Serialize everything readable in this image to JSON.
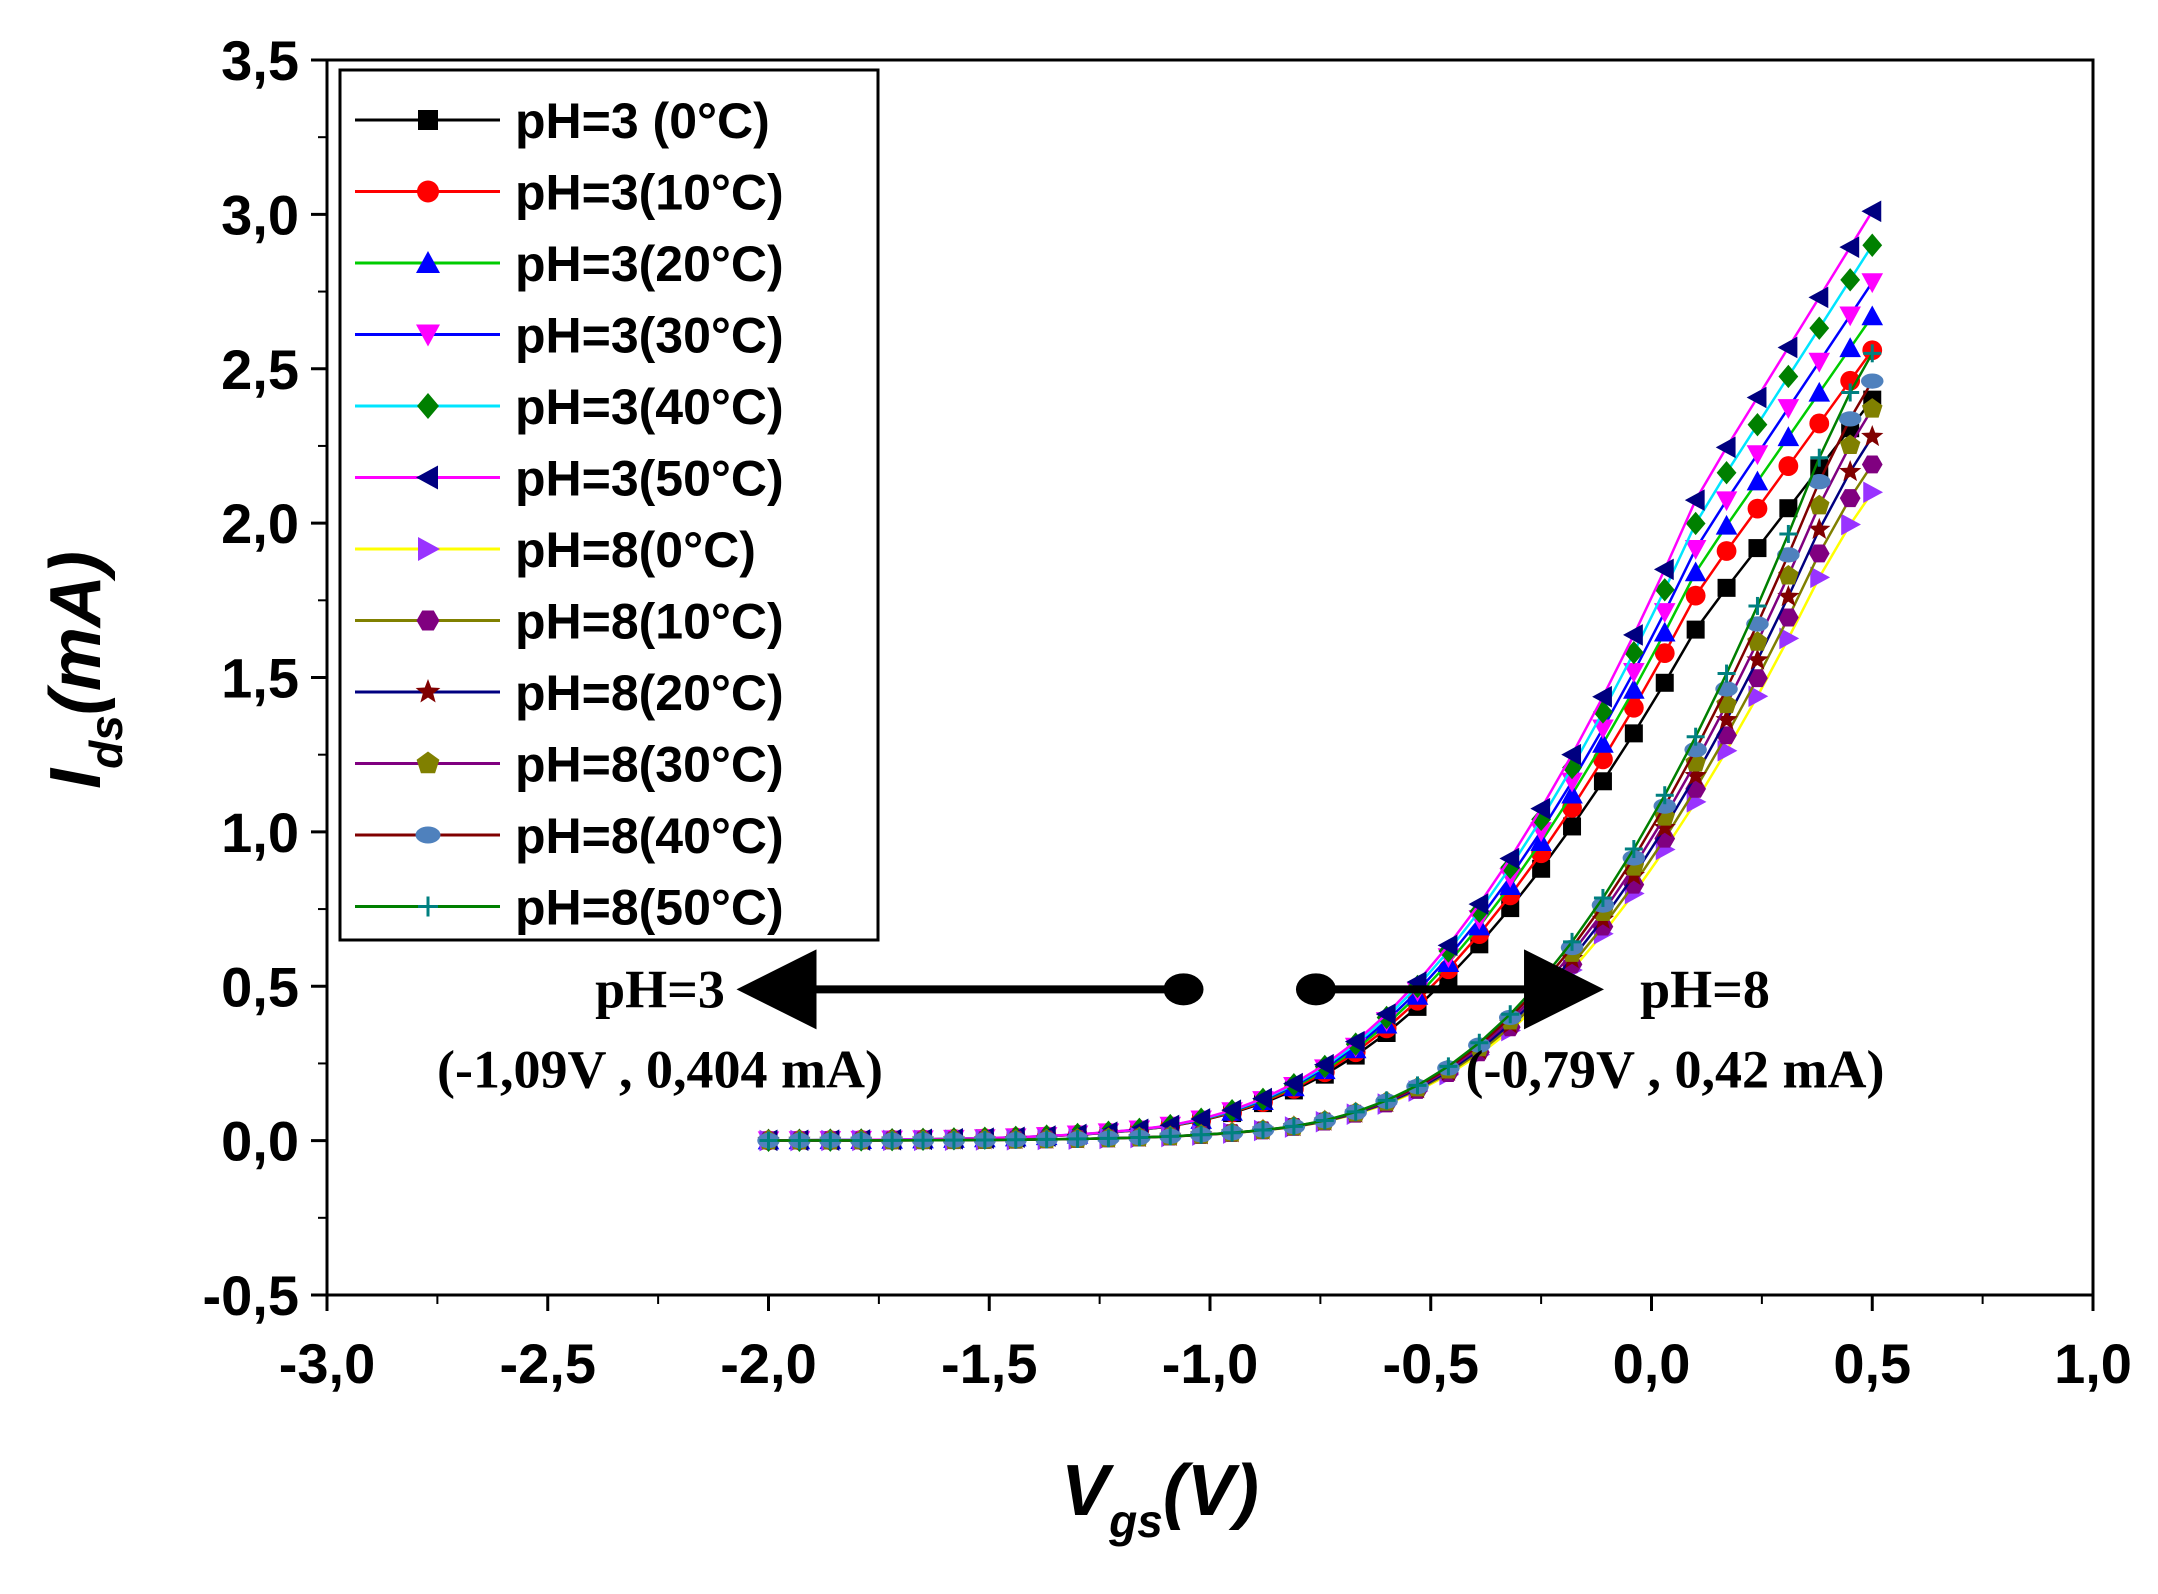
{
  "chart_data": {
    "type": "line",
    "title": "",
    "xlabel": "V",
    "xlabel_sub": "gs",
    "xlabel_unit": "(V)",
    "ylabel": "I",
    "ylabel_sub": "ds",
    "ylabel_unit": "(mA)",
    "xlim": [
      -3.0,
      1.0
    ],
    "ylim": [
      -0.5,
      3.5
    ],
    "xticks": [
      -3.0,
      -2.5,
      -2.0,
      -1.5,
      -1.0,
      -0.5,
      0.0,
      0.5,
      1.0
    ],
    "yticks": [
      -0.5,
      0.0,
      0.5,
      1.0,
      1.5,
      2.0,
      2.5,
      3.0,
      3.5
    ],
    "xtick_labels": [
      "-3,0",
      "-2,5",
      "-2,0",
      "-1,5",
      "-1,0",
      "-0,5",
      "0,0",
      "0,5",
      "1,0"
    ],
    "ytick_labels": [
      "-0,5",
      "0,0",
      "0,5",
      "1,0",
      "1,5",
      "2,0",
      "2,5",
      "3,0",
      "3,5"
    ],
    "grid": false,
    "legend_position": "top-left",
    "x": [
      -2.0,
      -1.93,
      -1.86,
      -1.79,
      -1.72,
      -1.65,
      -1.58,
      -1.51,
      -1.44,
      -1.37,
      -1.3,
      -1.23,
      -1.16,
      -1.09,
      -1.02,
      -0.95,
      -0.88,
      -0.81,
      -0.74,
      -0.67,
      -0.6,
      -0.53,
      -0.46,
      -0.39,
      -0.32,
      -0.25,
      -0.18,
      -0.11,
      -0.04,
      0.03,
      0.1,
      0.17,
      0.24,
      0.31,
      0.38,
      0.45,
      0.5
    ],
    "series": [
      {
        "name": "pH=3 (0°C)",
        "color": "#000000",
        "marker": "square",
        "threshold": -1.09,
        "slope_start": 0.92,
        "end_value": 2.4
      },
      {
        "name": "pH=3(10°C)",
        "color": "#ff0000",
        "marker": "circle",
        "threshold": -1.09,
        "slope_start": 0.93,
        "end_value": 2.56
      },
      {
        "name": "pH=3(20°C)",
        "color": "#00cc00",
        "marker": "triangle-up",
        "marker_color": "#0000ff",
        "threshold": -1.09,
        "slope_start": 0.95,
        "end_value": 2.67
      },
      {
        "name": "pH=3(30°C)",
        "color": "#0000ff",
        "marker": "triangle-down",
        "marker_color": "#ff00ff",
        "threshold": -1.09,
        "slope_start": 0.96,
        "end_value": 2.78
      },
      {
        "name": "pH=3(40°C)",
        "color": "#00e5ff",
        "marker": "diamond",
        "marker_color": "#008000",
        "threshold": -1.09,
        "slope_start": 0.97,
        "end_value": 2.9
      },
      {
        "name": "pH=3(50°C)",
        "color": "#ff00ff",
        "marker": "triangle-left",
        "marker_color": "#000080",
        "threshold": -1.09,
        "slope_start": 0.98,
        "end_value": 3.01
      },
      {
        "name": "pH=8(0°C)",
        "color": "#ffff00",
        "marker": "triangle-right",
        "marker_color": "#9933ff",
        "threshold": -0.79,
        "slope_start": 0.95,
        "end_value": 2.1
      },
      {
        "name": "pH=8(10°C)",
        "color": "#808000",
        "marker": "hexagon",
        "marker_color": "#800080",
        "threshold": -0.79,
        "slope_start": 0.96,
        "end_value": 2.19
      },
      {
        "name": "pH=8(20°C)",
        "color": "#000080",
        "marker": "star",
        "marker_color": "#800000",
        "threshold": -0.79,
        "slope_start": 0.97,
        "end_value": 2.28
      },
      {
        "name": "pH=8(30°C)",
        "color": "#800080",
        "marker": "pentagon",
        "marker_color": "#808000",
        "threshold": -0.79,
        "slope_start": 0.98,
        "end_value": 2.37
      },
      {
        "name": "pH=8(40°C)",
        "color": "#800000",
        "marker": "ellipse",
        "marker_color": "#4f81bd",
        "threshold": -0.79,
        "slope_start": 0.99,
        "end_value": 2.46
      },
      {
        "name": "pH=8(50°C)",
        "color": "#008000",
        "marker": "plus",
        "marker_color": "#008080",
        "threshold": -0.79,
        "slope_start": 1.0,
        "end_value": 2.55
      }
    ],
    "annotations": [
      {
        "label": "pH=3",
        "coord_text": "(-1,09V , 0,404 mA)",
        "point": [
          -1.06,
          0.49
        ],
        "arrow_to": [
          -2.0,
          0.49
        ]
      },
      {
        "label": "pH=8",
        "coord_text": "(-0,79V , 0,42 mA)",
        "point": [
          -0.76,
          0.49
        ],
        "arrow_to": [
          -0.18,
          0.49
        ]
      }
    ]
  }
}
